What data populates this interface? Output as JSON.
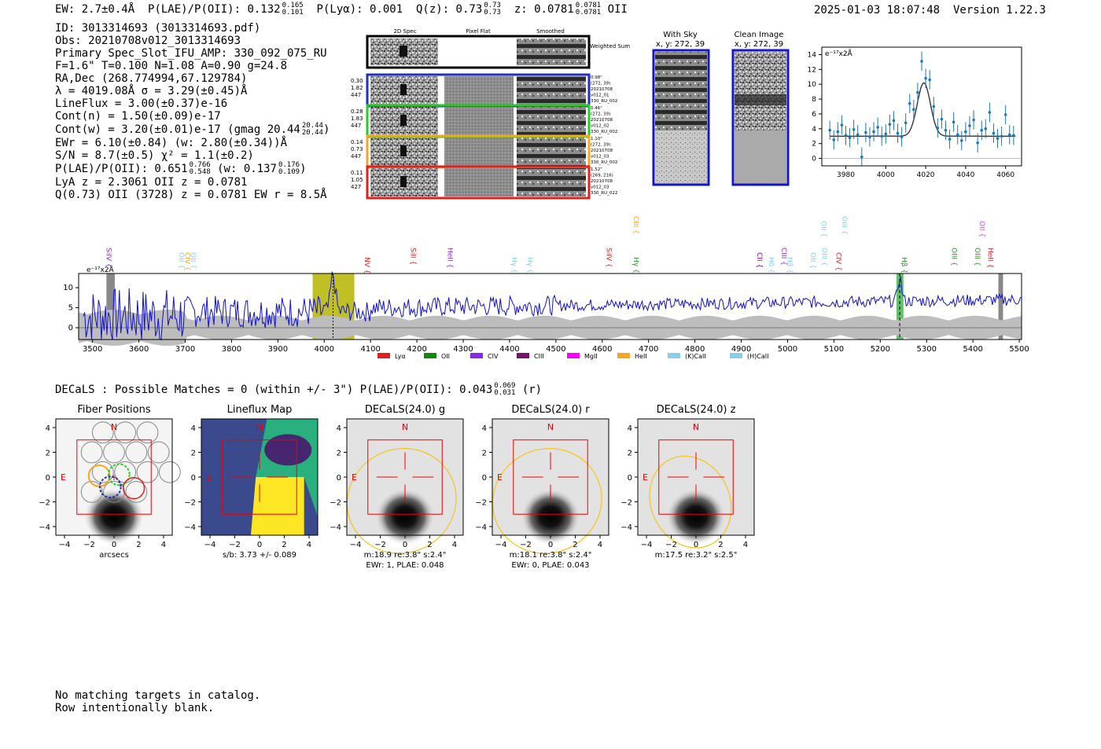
{
  "header": {
    "ew_label": "EW: 2.7±0.4Å",
    "plae_label": "P(LAE)/P(OII): 0.132",
    "plae_hi": "0.165",
    "plae_lo": "0.101",
    "plya_label": "P(Lyα): 0.001",
    "qz_label": "Q(z): 0.73",
    "qz_hi": "0.73",
    "qz_lo": "0.73",
    "z_label": "z: 0.0781",
    "z_hi": "0.0781",
    "z_lo": "0.0781",
    "z_line": "OII",
    "timestamp": "2025-01-03 18:07:48",
    "version": "Version 1.22.3"
  },
  "info": {
    "id": "ID: 3013314693 (3013314693.pdf)",
    "obs": "Obs: 20210708v012_3013314693",
    "spec_slot": "Primary Spec_Slot_IFU_AMP: 330_092_075_RU",
    "params": "F=1.6\"  T=0.100  N=1.08  A=0.90  g=24.8",
    "radec": "RA,Dec (268.774994,67.129784)",
    "lambda_sigma": "λ = 4019.08Å   σ = 3.29(±0.45)Å",
    "lineflux": "LineFlux = 3.00(±0.37)e-16",
    "cont_n": "Cont(n) = 1.50(±0.09)e-17",
    "cont_w": "Cont(w) = 3.20(±0.01)e-17 (gmag 20.44",
    "cont_w_hi": "20.44",
    "cont_w_lo": "20.44",
    "ewr": "EWr = 6.10(±0.84) (w: 2.80(±0.34))Å",
    "sn": "S/N = 8.7(±0.5)   χ² = 1.1(±0.2)",
    "plae": "P(LAE)/P(OII): 0.651",
    "plae_hi": "0.766",
    "plae_lo": "0.548",
    "plae_w": "(w: 0.137",
    "plae_w_hi": "0.176",
    "plae_w_lo": "0.109",
    "lya_z": "LyA z = 2.3061   OII z = 0.0781",
    "q_line": "Q(0.73) OII (3728) z = 0.0781   EW r = 8.5Å"
  },
  "cutouts": {
    "col_labels": [
      "2D Spec",
      "Pixel Flat",
      "Smoothed"
    ],
    "weighted_sum": "Weighted Sum",
    "rows": [
      {
        "left": [
          "0.30",
          "1.82",
          "447"
        ],
        "right": [
          "0.98\"",
          "(272, 39)",
          "20210708",
          "v012_01",
          "330_RU_002"
        ],
        "color": "#1f2fbf"
      },
      {
        "left": [
          "0.28",
          "1.83",
          "447"
        ],
        "right": [
          "0.46\"",
          "(272, 39)",
          "20210708",
          "v012_02",
          "330_RU_002"
        ],
        "color": "#22cc22"
      },
      {
        "left": [
          "0.14",
          "0.73",
          "447"
        ],
        "right": [
          "1.10\"",
          "(272, 39)",
          "20210708",
          "v012_03",
          "330_RU_002"
        ],
        "color": "#f5a623"
      },
      {
        "left": [
          "0.11",
          "1.05",
          "427"
        ],
        "right": [
          "1.52\"",
          "(269, 216)",
          "20210708",
          "v012_03",
          "330_RU_022"
        ],
        "color": "#e02020"
      }
    ],
    "with_sky_title": "With Sky",
    "with_sky_xy": "x, y: 272, 39",
    "clean_title": "Clean Image",
    "clean_xy": "x, y: 272, 39"
  },
  "zoom_chart": {
    "unit_label": "e⁻¹⁷x2Å",
    "x_ticks": [
      "3980",
      "4000",
      "4020",
      "4040",
      "4060"
    ],
    "y_ticks": [
      "0",
      "2",
      "4",
      "6",
      "8",
      "10",
      "12",
      "14"
    ]
  },
  "spectrum": {
    "unit_label": "e⁻¹⁷x2Å",
    "y_ticks": [
      "0",
      "5",
      "10"
    ],
    "x_ticks": [
      "3500",
      "3600",
      "3700",
      "3800",
      "3900",
      "4000",
      "4100",
      "4200",
      "4300",
      "4400",
      "4500",
      "4600",
      "4700",
      "4800",
      "4900",
      "5000",
      "5100",
      "5200",
      "5300",
      "5400",
      "5500"
    ],
    "lines": [
      {
        "name": "SiIV",
        "w": 3525,
        "color": "#8a2be2",
        "row": 0
      },
      {
        "name": "OII",
        "w": 3682,
        "color": "#87ceeb",
        "row": 0
      },
      {
        "name": "CIV",
        "w": 3695,
        "color": "#f5a623",
        "row": 0
      },
      {
        "name": "OII",
        "w": 3708,
        "color": "#87ceeb",
        "row": 0
      },
      {
        "name": "NV",
        "w": 4083,
        "color": "#e02020",
        "row": 0
      },
      {
        "name": "SiII",
        "w": 4182,
        "color": "#e02020",
        "row": 0
      },
      {
        "name": "HeII",
        "w": 4262,
        "color": "#8a2be2",
        "row": 0
      },
      {
        "name": "Hγ",
        "w": 4400,
        "color": "#87ceeb",
        "row": 0
      },
      {
        "name": "Hγ",
        "w": 4434,
        "color": "#87ceeb",
        "row": 0
      },
      {
        "name": "SiIV",
        "w": 4605,
        "color": "#e02020",
        "row": 0
      },
      {
        "name": "Hγ",
        "w": 4663,
        "color": "#2e8b2e",
        "row": 0
      },
      {
        "name": "CIII",
        "w": 4663,
        "color": "#f5a623",
        "row": 1
      },
      {
        "name": "CII",
        "w": 4930,
        "color": "#8b008b",
        "row": 0
      },
      {
        "name": "Hδ",
        "w": 4955,
        "color": "#87ceeb",
        "row": 0
      },
      {
        "name": "CIII",
        "w": 4982,
        "color": "#8a2be2",
        "row": 0
      },
      {
        "name": "Hβ",
        "w": 4995,
        "color": "#87ceeb",
        "row": 0
      },
      {
        "name": "OII",
        "w": 5045,
        "color": "#87ceeb",
        "row": 0
      },
      {
        "name": "OIII",
        "w": 5070,
        "color": "#87ceeb",
        "row": 0
      },
      {
        "name": "CIV",
        "w": 5100,
        "color": "#e02020",
        "row": 0
      },
      {
        "name": "OII",
        "w": 5068,
        "color": "#87ceeb",
        "row": 1
      },
      {
        "name": "OIII",
        "w": 5113,
        "color": "#87ceeb",
        "row": 1
      },
      {
        "name": "Hβ",
        "w": 5242,
        "color": "#2e8b2e",
        "row": 0
      },
      {
        "name": "OIII",
        "w": 5350,
        "color": "#2e8b2e",
        "row": 0
      },
      {
        "name": "OII",
        "w": 5410,
        "color": "#e040e0",
        "row": 1
      },
      {
        "name": "OIII",
        "w": 5400,
        "color": "#2e8b2e",
        "row": 0
      },
      {
        "name": "HeII",
        "w": 5428,
        "color": "#e02020",
        "row": 0
      }
    ],
    "legend": [
      {
        "label": "Lyα",
        "color": "#e02020"
      },
      {
        "label": "OII",
        "color": "#118811"
      },
      {
        "label": "CIV",
        "color": "#8a2be2"
      },
      {
        "label": "CIII",
        "color": "#7a1070"
      },
      {
        "label": "MgII",
        "color": "#ff00ff"
      },
      {
        "label": "HeII",
        "color": "#f5a623"
      },
      {
        "label": "(K)CaII",
        "color": "#87ceeb"
      },
      {
        "label": "(H)CaII",
        "color": "#87ceeb"
      }
    ]
  },
  "decals": {
    "line": "DECaLS : Possible Matches = 0 (within +/- 3\")  P(LAE)/P(OII): 0.043",
    "hi": "0.069",
    "lo": "0.031",
    "band": "(r)",
    "panels": [
      {
        "title": "Fiber Positions",
        "cap1": "arcsecs",
        "cap2": ""
      },
      {
        "title": "Lineflux Map",
        "cap1": "s/b: 3.73 +/- 0.089",
        "cap2": ""
      },
      {
        "title": "DECaLS(24.0) g",
        "cap1": "m:18.9  re:3.8\"  s:2.4\"",
        "cap2": "EWr: 1, PLAE: 0.048"
      },
      {
        "title": "DECaLS(24.0) r",
        "cap1": "m:18.1  re:3.8\"  s:2.4\"",
        "cap2": "EWr: 0, PLAE: 0.043"
      },
      {
        "title": "DECaLS(24.0) z",
        "cap1": "m:17.5  re:3.2\"  s:2.5\"",
        "cap2": ""
      }
    ],
    "axis_ticks": [
      "−4",
      "−2",
      "0",
      "2",
      "4"
    ],
    "north": "N",
    "east": "E"
  },
  "chart_data": {
    "type": "scatter",
    "title": "",
    "xlabel": "",
    "ylabel": "e⁻¹⁷x2Å",
    "xlim": [
      3968,
      4068
    ],
    "ylim": [
      -1,
      15
    ],
    "x": [
      3972,
      3974,
      3976,
      3978,
      3980,
      3982,
      3984,
      3986,
      3988,
      3990,
      3992,
      3994,
      3996,
      3998,
      4000,
      4002,
      4004,
      4006,
      4008,
      4010,
      4012,
      4014,
      4016,
      4018,
      4020,
      4022,
      4024,
      4026,
      4028,
      4030,
      4032,
      4034,
      4036,
      4038,
      4040,
      4042,
      4044,
      4046,
      4048,
      4050,
      4052,
      4054,
      4056,
      4058,
      4060,
      4062,
      4064
    ],
    "y": [
      3.8,
      2.5,
      3.6,
      4.5,
      3.1,
      2.8,
      3.9,
      3.2,
      0.2,
      3.5,
      2.9,
      3.6,
      4.2,
      3.0,
      3.3,
      4.6,
      5.1,
      3.4,
      2.9,
      4.8,
      7.4,
      6.6,
      8.9,
      13.1,
      10.8,
      10.6,
      7.0,
      4.1,
      5.3,
      3.8,
      2.6,
      4.9,
      3.2,
      2.4,
      3.6,
      4.4,
      5.2,
      2.1,
      3.8,
      4.0,
      6.2,
      3.4,
      2.7,
      3.0,
      5.9,
      3.2,
      3.1
    ],
    "fit": {
      "continuum": 3.0,
      "center": 4019.08,
      "sigma": 3.29,
      "amplitude": 7.2
    }
  }
}
